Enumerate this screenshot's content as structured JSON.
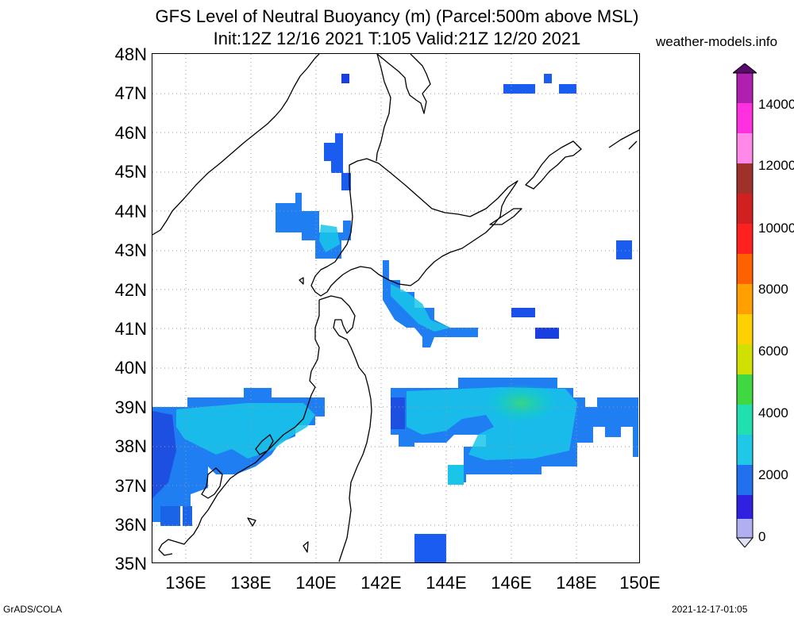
{
  "header": {
    "title_line1": "GFS Level of Neutral Buoyancy (m) (Parcel:500m above MSL)",
    "title_line2": "Init:12Z 12/16 2021 T:105 Valid:21Z 12/20 2021",
    "site": "weather-models.info"
  },
  "axes": {
    "lat_labels": [
      "48N",
      "47N",
      "46N",
      "45N",
      "44N",
      "43N",
      "42N",
      "41N",
      "40N",
      "39N",
      "38N",
      "37N",
      "36N",
      "35N"
    ],
    "lon_labels": [
      "136E",
      "138E",
      "140E",
      "142E",
      "144E",
      "146E",
      "148E",
      "150E"
    ]
  },
  "colorbar": {
    "labels": [
      "14000",
      "12000",
      "10000",
      "8000",
      "6000",
      "4000",
      "2000",
      "0"
    ]
  },
  "footer": {
    "left": "GrADS/COLA",
    "right": "2021-12-17-01:05"
  },
  "colors": {
    "coast": "#000000",
    "grid": "#999999",
    "field_low": "#1a5cf0",
    "field_mid": "#00c8e6",
    "field_high": "#3ad878"
  }
}
